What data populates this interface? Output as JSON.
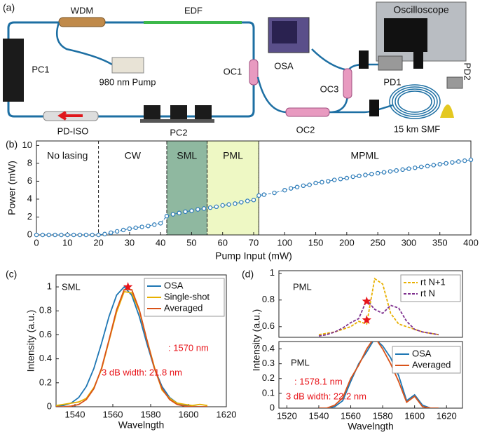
{
  "diagram": {
    "panel_label": "(a)",
    "wdm": "WDM",
    "edf": "EDF",
    "pc1": "PC1",
    "pump": "980 nm Pump",
    "oc1": "OC1",
    "pd_iso": "PD-ISO",
    "pc2": "PC2",
    "osa": "OSA",
    "oc3": "OC3",
    "oscilloscope": "Oscilloscope",
    "pd1": "PD1",
    "pd2": "PD2",
    "oc2": "OC2",
    "smf": "15 km SMF"
  },
  "chart_data": [
    {
      "type": "scatter",
      "panel_label": "(b)",
      "xlabel": "Pump Input (mW)",
      "ylabel": "Power (mW)",
      "xscale": "piecewise",
      "xlim": [
        0,
        400
      ],
      "xticks": [
        0,
        10,
        20,
        30,
        40,
        50,
        60,
        70,
        100,
        150,
        200,
        250,
        300,
        350,
        400
      ],
      "ylim": [
        0,
        10.5
      ],
      "yticks": [
        0,
        2,
        4,
        6,
        8,
        10
      ],
      "regions": [
        {
          "name": "No lasing",
          "from": 0,
          "to": 20
        },
        {
          "name": "CW",
          "from": 20,
          "to": 42
        },
        {
          "name": "SML",
          "from": 42,
          "to": 55,
          "color": "#8fb8a0"
        },
        {
          "name": "PML",
          "from": 55,
          "to": 75,
          "color": "#eef8c4"
        },
        {
          "name": "MPML",
          "from": 75,
          "to": 400
        }
      ],
      "x": [
        0,
        2,
        4,
        6,
        8,
        10,
        12,
        14,
        16,
        18,
        20,
        22,
        24,
        26,
        28,
        30,
        32,
        34,
        36,
        38,
        40,
        42,
        44,
        46,
        48,
        50,
        52,
        54,
        56,
        58,
        60,
        62,
        64,
        66,
        68,
        70,
        75,
        80,
        90,
        100,
        110,
        120,
        130,
        140,
        150,
        160,
        170,
        180,
        190,
        200,
        210,
        220,
        230,
        240,
        250,
        260,
        270,
        280,
        290,
        300,
        310,
        320,
        330,
        340,
        350,
        360,
        370,
        380,
        390,
        400
      ],
      "series": [
        {
          "color": "#2a7ab8",
          "values": [
            0,
            0,
            0,
            0,
            0,
            0,
            0,
            0,
            0,
            0,
            0,
            0.1,
            0.25,
            0.4,
            0.55,
            0.7,
            0.8,
            0.9,
            1.0,
            1.15,
            1.3,
            2.1,
            2.3,
            2.45,
            2.6,
            2.7,
            2.85,
            2.95,
            3.05,
            3.15,
            3.3,
            3.4,
            3.5,
            3.65,
            3.8,
            3.9,
            4.4,
            4.5,
            4.7,
            5.0,
            5.2,
            5.35,
            5.5,
            5.6,
            5.8,
            5.9,
            6.0,
            6.15,
            6.25,
            6.35,
            6.5,
            6.6,
            6.7,
            6.8,
            6.9,
            7.0,
            7.1,
            7.2,
            7.3,
            7.4,
            7.5,
            7.6,
            7.7,
            7.8,
            7.9,
            8.0,
            8.1,
            8.2,
            8.3,
            8.4
          ]
        }
      ]
    },
    {
      "type": "line",
      "panel_label": "(c)",
      "xlabel": "Wavelngth",
      "ylabel": "Intensity (a.u.)",
      "xlim": [
        1530,
        1620
      ],
      "xticks": [
        1540,
        1560,
        1580,
        1600,
        1620
      ],
      "ylim": [
        0,
        1.1
      ],
      "yticks": [
        0,
        0.2,
        0.4,
        0.6,
        0.8,
        1
      ],
      "x": [
        1530,
        1534,
        1538,
        1542,
        1546,
        1550,
        1554,
        1558,
        1562,
        1566,
        1570,
        1574,
        1578,
        1582,
        1586,
        1590,
        1594,
        1598,
        1602,
        1606,
        1610
      ],
      "series": [
        {
          "name": "OSA",
          "color": "#1f77b4",
          "values": [
            0.003,
            0.011,
            0.031,
            0.077,
            0.169,
            0.32,
            0.527,
            0.753,
            0.931,
            1,
            0.931,
            0.753,
            0.527,
            0.32,
            0.169,
            0.077,
            0.031,
            0.011,
            0.003,
            0,
            0
          ]
        },
        {
          "name": "Single-shot",
          "color": "#e8b000",
          "values": [
            0.01,
            0.02,
            0.03,
            0.04,
            0.07,
            0.16,
            0.31,
            0.55,
            0.79,
            0.96,
            0.95,
            0.8,
            0.56,
            0.33,
            0.14,
            0.07,
            0.03,
            0.02,
            0.01,
            0.02,
            0.01
          ]
        },
        {
          "name": "Averaged",
          "color": "#d95319",
          "values": [
            0,
            0,
            0.005,
            0.019,
            0.06,
            0.151,
            0.319,
            0.558,
            0.81,
            0.977,
            0.977,
            0.81,
            0.558,
            0.319,
            0.151,
            0.06,
            0.019,
            0.005,
            0,
            0,
            0
          ]
        }
      ],
      "markers": [
        {
          "x": 1568,
          "y": 1,
          "color": "#e8141a"
        }
      ],
      "annotations": [
        {
          "text": "SML",
          "color": "#111111"
        },
        {
          "text": ": 1570 nm",
          "color": "#e8141a"
        },
        {
          "text": "3 dB width: 21.8 nm",
          "color": "#e8141a"
        }
      ]
    },
    {
      "type": "line",
      "panel_label": "(d)",
      "xlim": [
        1515,
        1630
      ],
      "ylim": [
        0.52,
        1.02
      ],
      "yticks": [
        0.6,
        0.8,
        1
      ],
      "x": [
        1540,
        1545,
        1550,
        1555,
        1560,
        1565,
        1570,
        1575,
        1580,
        1585,
        1590,
        1595,
        1600,
        1605,
        1610,
        1615
      ],
      "series": [
        {
          "name": "rt N+1",
          "color": "#e8b000",
          "linestyle": "dashed",
          "values": [
            0.54,
            0.55,
            0.56,
            0.58,
            0.6,
            0.64,
            0.62,
            0.96,
            0.92,
            0.7,
            0.62,
            0.6,
            0.58,
            0.56,
            0.55,
            0.54
          ]
        },
        {
          "name": "rt N",
          "color": "#7e2f8e",
          "linestyle": "dashed",
          "values": [
            0.53,
            0.54,
            0.56,
            0.59,
            0.63,
            0.66,
            0.8,
            0.73,
            0.7,
            0.76,
            0.74,
            0.64,
            0.58,
            0.56,
            0.55,
            0.54
          ]
        }
      ],
      "markers": [
        {
          "x": 1570,
          "y": 0.79,
          "color": "#e8141a"
        },
        {
          "x": 1570,
          "y": 0.65,
          "color": "#e8141a"
        }
      ],
      "annotations": [
        {
          "text": "PML",
          "color": "#111111"
        }
      ]
    },
    {
      "type": "line",
      "xlabel": "Wavelngth",
      "ylabel": "Intensity (a.u.)",
      "xlim": [
        1515,
        1630
      ],
      "xticks": [
        1520,
        1540,
        1560,
        1580,
        1600,
        1620
      ],
      "ylim": [
        0,
        0.45
      ],
      "yticks": [
        0,
        0.1,
        0.2,
        0.3,
        0.4
      ],
      "x": [
        1540,
        1545,
        1550,
        1555,
        1560,
        1565,
        1570,
        1575,
        1580,
        1585,
        1590,
        1595,
        1600,
        1605,
        1610,
        1615
      ],
      "series": [
        {
          "name": "OSA",
          "color": "#1f77b4",
          "values": [
            0,
            0,
            0.01,
            0.05,
            0.18,
            0.3,
            0.38,
            0.47,
            0.42,
            0.34,
            0.22,
            0.05,
            0.09,
            0.02,
            0,
            0
          ]
        },
        {
          "name": "Averaged",
          "color": "#d95319",
          "values": [
            0,
            0,
            0.02,
            0.07,
            0.2,
            0.29,
            0.4,
            0.48,
            0.4,
            0.3,
            0.18,
            0.04,
            0.08,
            0.01,
            0,
            0
          ]
        }
      ],
      "annotations": [
        {
          "text": "PML",
          "color": "#111111"
        },
        {
          "text": ": 1578.1 nm",
          "color": "#e8141a"
        },
        {
          "text": "3 dB width: 22.2 nm",
          "color": "#e8141a"
        }
      ]
    }
  ]
}
